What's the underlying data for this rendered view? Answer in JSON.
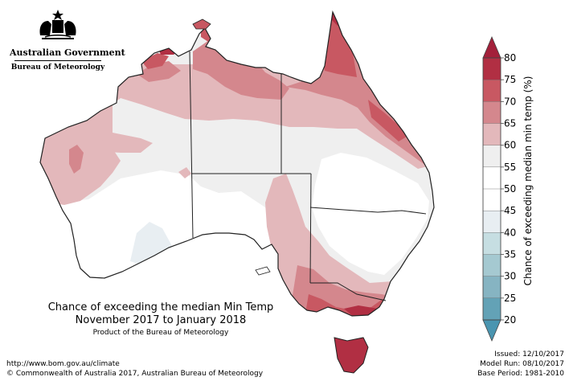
{
  "branding": {
    "government": "Australian Government",
    "bureau": "Bureau of Meteorology"
  },
  "map": {
    "title_line1": "Chance of exceeding the median Min Temp",
    "title_line2": "November 2017 to January 2018",
    "subtitle": "Product of the Bureau of Meteorology"
  },
  "colorbar": {
    "title": "Chance of exceeding median min temp (%)",
    "ticks": [
      "80",
      "75",
      "70",
      "65",
      "60",
      "55",
      "50",
      "45",
      "40",
      "35",
      "30",
      "25",
      "20"
    ],
    "bins": [
      {
        "range": "75-80",
        "color": "#b12f43"
      },
      {
        "range": "70-75",
        "color": "#c85862"
      },
      {
        "range": "65-70",
        "color": "#d4878d"
      },
      {
        "range": "60-65",
        "color": "#e3b8bb"
      },
      {
        "range": "55-60",
        "color": "#efefef"
      },
      {
        "range": "50-55",
        "color": "#ffffff"
      },
      {
        "range": "45-50",
        "color": "#ffffff"
      },
      {
        "range": "40-45",
        "color": "#e8eef2"
      },
      {
        "range": "35-40",
        "color": "#c6dee2"
      },
      {
        "range": "30-35",
        "color": "#a5c9d1"
      },
      {
        "range": "25-30",
        "color": "#86b4c2"
      },
      {
        "range": "20-25",
        "color": "#63a2b6"
      }
    ],
    "top_arrow_color": "#a3203a",
    "bottom_arrow_color": "#4a95b0"
  },
  "footer": {
    "url": "http://www.bom.gov.au/climate",
    "copyright": "© Commonwealth of Australia 2017, Australian Bureau of Meteorology",
    "issued": "Issued: 12/10/2017",
    "model_run": "Model Run: 08/10/2017",
    "base_period": "Base Period: 1981-2010"
  }
}
